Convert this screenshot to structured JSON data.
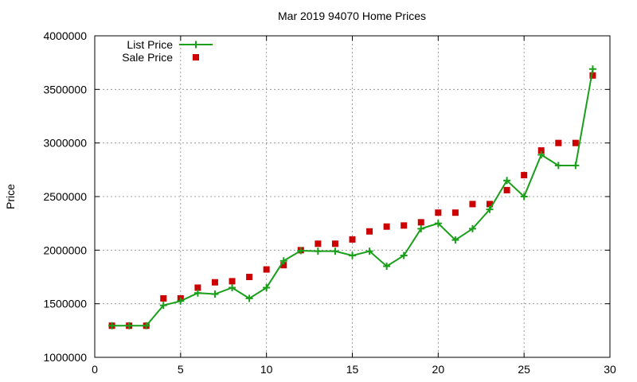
{
  "chart_data": {
    "type": "line",
    "title": "Mar 2019 94070 Home Prices",
    "xlabel": "",
    "ylabel": "Price",
    "xlim": [
      0,
      30
    ],
    "ylim": [
      1000000,
      4000000
    ],
    "xticks": [
      "0",
      "5",
      "10",
      "15",
      "20",
      "25",
      "30"
    ],
    "yticks": [
      "1000000",
      "1500000",
      "2000000",
      "2500000",
      "3000000",
      "3500000",
      "4000000"
    ],
    "grid": true,
    "legend_position": "top-left",
    "series": [
      {
        "name": "List Price",
        "style": "line+cross",
        "color": "#1a9f1a",
        "x": [
          1,
          2,
          3,
          4,
          5,
          6,
          7,
          8,
          9,
          10,
          11,
          12,
          13,
          14,
          15,
          16,
          17,
          18,
          19,
          20,
          21,
          22,
          23,
          24,
          25,
          26,
          27,
          28,
          29
        ],
        "values": [
          1295000,
          1295000,
          1295000,
          1485000,
          1525000,
          1600000,
          1590000,
          1650000,
          1550000,
          1650000,
          1900000,
          1995000,
          1990000,
          1990000,
          1950000,
          1990000,
          1850000,
          1950000,
          2200000,
          2250000,
          2095000,
          2200000,
          2380000,
          2650000,
          2500000,
          2890000,
          2790000,
          2790000,
          3690000
        ]
      },
      {
        "name": "Sale Price",
        "style": "square",
        "color": "#cc0000",
        "x": [
          1,
          2,
          3,
          4,
          5,
          6,
          7,
          8,
          9,
          10,
          11,
          12,
          13,
          14,
          15,
          16,
          17,
          18,
          19,
          20,
          21,
          22,
          23,
          24,
          25,
          26,
          27,
          28,
          29
        ],
        "values": [
          1295000,
          1295000,
          1295000,
          1550000,
          1550000,
          1650000,
          1700000,
          1710000,
          1750000,
          1820000,
          1860000,
          2000000,
          2060000,
          2060000,
          2100000,
          2175000,
          2220000,
          2230000,
          2260000,
          2350000,
          2350000,
          2430000,
          2430000,
          2560000,
          2700000,
          2930000,
          3000000,
          3000000,
          3630000
        ]
      }
    ]
  }
}
